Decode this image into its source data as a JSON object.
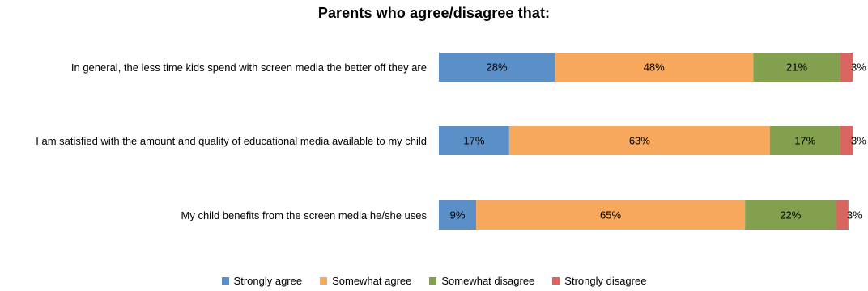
{
  "chart_data": {
    "type": "bar",
    "orientation": "horizontal",
    "stacked": true,
    "title": "Parents who agree/disagree that:",
    "categories": [
      "In general, the less time kids spend with screen media the better off they are",
      "I am satisfied with the amount and quality of educational media available to my child",
      "My child benefits from the screen media he/she uses"
    ],
    "series": [
      {
        "name": "Strongly agree",
        "color": "#5b8fc7",
        "values": [
          28,
          17,
          9
        ],
        "labels": [
          "28%",
          "17%",
          "9%"
        ]
      },
      {
        "name": "Somewhat agree",
        "color": "#f8a85c",
        "values": [
          48,
          63,
          65
        ],
        "labels": [
          "48%",
          "63%",
          "65%"
        ]
      },
      {
        "name": "Somewhat disagree",
        "color": "#82a04e",
        "values": [
          21,
          17,
          22
        ],
        "labels": [
          "21%",
          "17%",
          "22%"
        ]
      },
      {
        "name": "Strongly disagree",
        "color": "#d96561",
        "values": [
          3,
          3,
          3
        ],
        "labels": [
          "3%",
          "3%",
          "3%"
        ]
      }
    ],
    "xlim": [
      0,
      100
    ],
    "grid": false,
    "legend_position": "bottom"
  }
}
